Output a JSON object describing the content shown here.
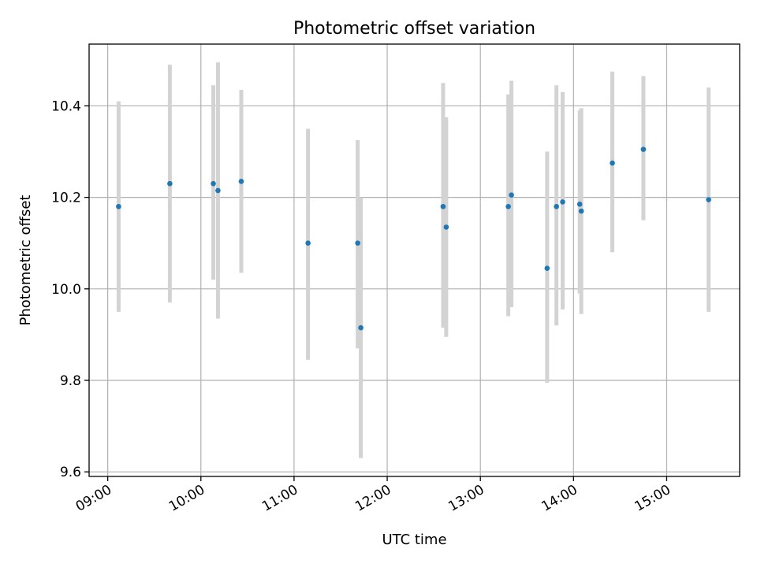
{
  "chart_data": {
    "type": "scatter",
    "title": "Photometric offset variation",
    "xlabel": "UTC time",
    "ylabel": "Photometric offset",
    "xlim": [
      "08:48",
      "15:47"
    ],
    "ylim": [
      9.59,
      10.535
    ],
    "grid": true,
    "legend": "none",
    "x_ticks": [
      "09:00",
      "10:00",
      "11:00",
      "12:00",
      "13:00",
      "14:00",
      "15:00"
    ],
    "y_ticks": [
      9.6,
      9.8,
      10.0,
      10.2,
      10.4
    ],
    "y_tick_labels": [
      "9.6",
      "9.8",
      "10.0",
      "10.2",
      "10.4"
    ],
    "colors": {
      "point": "#1f77b4",
      "errorbar": "#d3d3d3"
    },
    "series": [
      {
        "points": [
          {
            "x": "09:07",
            "y": 10.18,
            "ylow": 9.95,
            "yhigh": 10.41
          },
          {
            "x": "09:40",
            "y": 10.23,
            "ylow": 9.97,
            "yhigh": 10.49
          },
          {
            "x": "10:08",
            "y": 10.23,
            "ylow": 10.02,
            "yhigh": 10.445
          },
          {
            "x": "10:11",
            "y": 10.215,
            "ylow": 9.935,
            "yhigh": 10.495
          },
          {
            "x": "10:26",
            "y": 10.235,
            "ylow": 10.035,
            "yhigh": 10.435
          },
          {
            "x": "11:09",
            "y": 10.1,
            "ylow": 9.845,
            "yhigh": 10.35
          },
          {
            "x": "11:41",
            "y": 10.1,
            "ylow": 9.87,
            "yhigh": 10.325
          },
          {
            "x": "11:43",
            "y": 9.915,
            "ylow": 9.63,
            "yhigh": 10.2
          },
          {
            "x": "12:36",
            "y": 10.18,
            "ylow": 9.915,
            "yhigh": 10.45
          },
          {
            "x": "12:38",
            "y": 10.135,
            "ylow": 9.895,
            "yhigh": 10.375
          },
          {
            "x": "13:18",
            "y": 10.18,
            "ylow": 9.94,
            "yhigh": 10.425
          },
          {
            "x": "13:20",
            "y": 10.205,
            "ylow": 9.96,
            "yhigh": 10.455
          },
          {
            "x": "13:43",
            "y": 10.045,
            "ylow": 9.795,
            "yhigh": 10.3
          },
          {
            "x": "13:49",
            "y": 10.18,
            "ylow": 9.92,
            "yhigh": 10.445
          },
          {
            "x": "13:53",
            "y": 10.19,
            "ylow": 9.955,
            "yhigh": 10.43
          },
          {
            "x": "14:04",
            "y": 10.185,
            "ylow": 9.99,
            "yhigh": 10.39
          },
          {
            "x": "14:05",
            "y": 10.17,
            "ylow": 9.945,
            "yhigh": 10.395
          },
          {
            "x": "14:25",
            "y": 10.275,
            "ylow": 10.08,
            "yhigh": 10.475
          },
          {
            "x": "14:45",
            "y": 10.305,
            "ylow": 10.15,
            "yhigh": 10.465
          },
          {
            "x": "15:27",
            "y": 10.195,
            "ylow": 9.95,
            "yhigh": 10.44
          }
        ]
      }
    ]
  }
}
